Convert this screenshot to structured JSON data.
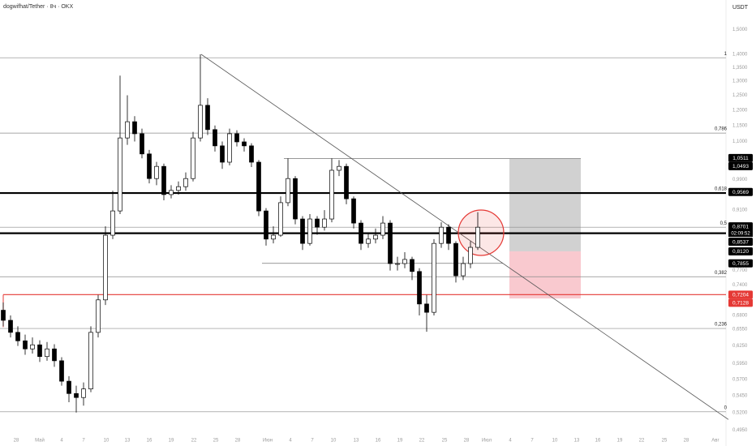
{
  "chart_data": {
    "type": "candlestick",
    "title": "dogwifhat/Tether · 8ч · OKX",
    "currency": "USDT",
    "log_scale": true,
    "ylim": [
      0.474,
      1.627
    ],
    "yticks": [
      {
        "value": 1.5,
        "label": "1,5000"
      },
      {
        "value": 1.4,
        "label": "1,4000"
      },
      {
        "value": 1.35,
        "label": "1,3500"
      },
      {
        "value": 1.3,
        "label": "1,3000"
      },
      {
        "value": 1.25,
        "label": "1,2500"
      },
      {
        "value": 1.2,
        "label": "1,2000"
      },
      {
        "value": 1.15,
        "label": "1,1500"
      },
      {
        "value": 1.1,
        "label": "1,1000"
      },
      {
        "value": 0.99,
        "label": "0,9900"
      },
      {
        "value": 0.91,
        "label": "0,9100"
      },
      {
        "value": 0.77,
        "label": "0,7700"
      },
      {
        "value": 0.74,
        "label": "0,7400"
      },
      {
        "value": 0.68,
        "label": "0,6800"
      },
      {
        "value": 0.655,
        "label": "0,6550"
      },
      {
        "value": 0.625,
        "label": "0,6250"
      },
      {
        "value": 0.595,
        "label": "0,5950"
      },
      {
        "value": 0.57,
        "label": "0,5700"
      },
      {
        "value": 0.545,
        "label": "0,5450"
      },
      {
        "value": 0.52,
        "label": "0,5200"
      },
      {
        "value": 0.495,
        "label": "0,4950"
      }
    ],
    "x_labels": [
      "28",
      "Май",
      "4",
      "7",
      "10",
      "13",
      "16",
      "19",
      "22",
      "25",
      "28",
      "Июн",
      "4",
      "7",
      "10",
      "13",
      "16",
      "19",
      "22",
      "25",
      "28",
      "Июл",
      "4",
      "7",
      "10",
      "13",
      "16",
      "19",
      "22",
      "25",
      "28",
      "Авг"
    ],
    "up_color": "#ffffff",
    "down_color": "#000000",
    "open": [
      0.69,
      0.671,
      0.649,
      0.634,
      0.62,
      0.627,
      0.607,
      0.62,
      0.6,
      0.567,
      0.548,
      0.542,
      0.555,
      0.649,
      0.71,
      0.849,
      0.908,
      1.111,
      1.162,
      1.124,
      1.063,
      0.993,
      1.027,
      0.95,
      0.961,
      0.971,
      0.993,
      1.111,
      1.216,
      1.137,
      1.087,
      1.039,
      1.124,
      1.099,
      1.087,
      1.039,
      0.908,
      0.84,
      0.849,
      0.929,
      0.993,
      0.888,
      0.83,
      0.888,
      0.868,
      0.888,
      1.016,
      1.027,
      0.939,
      0.878,
      0.83,
      0.84,
      0.849,
      0.878,
      0.785,
      0.785,
      0.794,
      0.768,
      0.702,
      0.686,
      0.83,
      0.868,
      0.83,
      0.759,
      0.785,
      0.821
    ],
    "high": [
      0.705,
      0.68,
      0.66,
      0.645,
      0.64,
      0.635,
      0.632,
      0.628,
      0.606,
      0.575,
      0.56,
      0.565,
      0.66,
      0.72,
      0.87,
      0.96,
      1.32,
      1.25,
      1.18,
      1.14,
      1.075,
      1.04,
      1.035,
      0.975,
      0.985,
      1.01,
      1.13,
      1.4,
      1.24,
      1.15,
      1.1,
      1.14,
      1.135,
      1.11,
      1.095,
      1.045,
      0.915,
      0.87,
      0.945,
      1.05,
      1.0,
      0.895,
      0.9,
      0.895,
      0.91,
      1.05,
      1.045,
      1.035,
      0.945,
      0.885,
      0.855,
      0.865,
      0.895,
      0.885,
      0.8,
      0.81,
      0.8,
      0.775,
      0.72,
      0.84,
      0.88,
      0.875,
      0.835,
      0.8,
      0.835,
      0.905
    ],
    "low": [
      0.66,
      0.64,
      0.625,
      0.61,
      0.612,
      0.598,
      0.6,
      0.59,
      0.56,
      0.535,
      0.52,
      0.53,
      0.55,
      0.64,
      0.7,
      0.84,
      0.9,
      1.09,
      1.1,
      1.05,
      0.98,
      0.975,
      0.935,
      0.94,
      0.95,
      0.96,
      0.985,
      1.1,
      1.12,
      1.07,
      1.02,
      1.03,
      1.085,
      1.07,
      1.025,
      0.895,
      0.825,
      0.83,
      0.845,
      0.92,
      0.875,
      0.815,
      0.825,
      0.85,
      0.86,
      0.88,
      1.0,
      0.925,
      0.865,
      0.815,
      0.82,
      0.83,
      0.84,
      0.77,
      0.77,
      0.775,
      0.75,
      0.68,
      0.65,
      0.68,
      0.82,
      0.815,
      0.745,
      0.75,
      0.775,
      0.815
    ],
    "close": [
      0.671,
      0.649,
      0.634,
      0.62,
      0.627,
      0.607,
      0.62,
      0.6,
      0.567,
      0.548,
      0.542,
      0.555,
      0.649,
      0.71,
      0.849,
      0.908,
      1.111,
      1.162,
      1.124,
      1.063,
      0.993,
      1.027,
      0.95,
      0.961,
      0.971,
      0.993,
      1.111,
      1.216,
      1.137,
      1.087,
      1.039,
      1.124,
      1.099,
      1.087,
      1.039,
      0.908,
      0.84,
      0.849,
      0.929,
      0.993,
      0.888,
      0.83,
      0.888,
      0.868,
      0.888,
      1.016,
      1.027,
      0.939,
      0.878,
      0.83,
      0.84,
      0.849,
      0.878,
      0.785,
      0.785,
      0.794,
      0.768,
      0.702,
      0.686,
      0.83,
      0.868,
      0.83,
      0.759,
      0.785,
      0.821,
      0.868
    ],
    "fib_levels": [
      {
        "label": "1",
        "price": 1.387
      },
      {
        "label": "0,786",
        "price": 1.126
      },
      {
        "label": "0,618",
        "price": 0.954
      },
      {
        "label": "0,5",
        "price": 0.868
      },
      {
        "label": "0,382",
        "price": 0.757
      },
      {
        "label": "0,236",
        "price": 0.656
      },
      {
        "label": "0",
        "price": 0.521
      }
    ],
    "key_levels": [
      0.954,
      0.8537
    ],
    "red_level": {
      "price": 0.7204,
      "color": "#e53935"
    },
    "range_lines": [
      1.0493,
      0.7855
    ],
    "trendline": {
      "start": 1.4,
      "end": 0.51
    },
    "position": {
      "target": 1.0493,
      "entry": 0.812,
      "stop": 0.7128,
      "target_color": "#c9c9c9",
      "stop_color": "#f8c3ca"
    },
    "price_badges": [
      {
        "value": 1.0511,
        "label": "1,0511",
        "color": "#000000"
      },
      {
        "value": 1.0493,
        "label": "1,0493",
        "color": "#000000"
      },
      {
        "value": 0.9569,
        "label": "0,9569",
        "color": "#000000"
      },
      {
        "value": 0.8701,
        "label": "0,8701",
        "color": "#000000"
      },
      {
        "value": 0.8537,
        "label": "0,8537",
        "color": "#000000"
      },
      {
        "value": 0.812,
        "label": "0,8120",
        "color": "#000000"
      },
      {
        "value": 0.7855,
        "label": "0,7855",
        "color": "#000000"
      },
      {
        "value": 0.7204,
        "label": "0,7204",
        "color": "#e53935"
      },
      {
        "value": 0.7128,
        "label": "0,7128",
        "color": "#e53935"
      }
    ],
    "countdown": "02:09:52"
  }
}
